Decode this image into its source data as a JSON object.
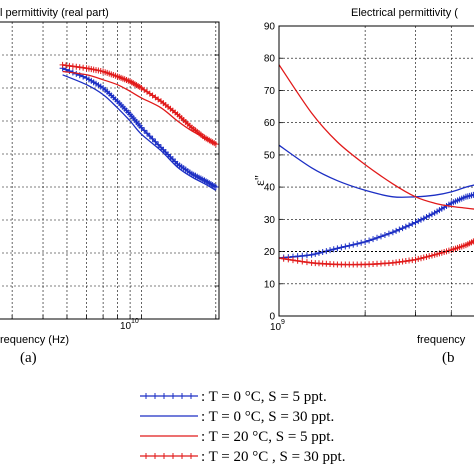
{
  "chart_data": [
    {
      "type": "line",
      "title": "l permittivity (real part)",
      "xlabel": "requency (Hz)",
      "ylabel": "",
      "x_scale": "log",
      "x_tick_labels": [
        {
          "base": "10",
          "exp": "10"
        }
      ],
      "y_tick_labels": [],
      "grid": true,
      "panel_label": "(a)",
      "series": [
        {
          "color": "#1c2fc4",
          "marker": "plus",
          "points": [
            [
              4800000000.0,
              76
            ],
            [
              6000000000.0,
              73
            ],
            [
              7000000000.0,
              70
            ],
            [
              8000000000.0,
              66
            ],
            [
              9000000000.0,
              62
            ],
            [
              10000000000.0,
              58
            ],
            [
              12000000000.0,
              52
            ],
            [
              14000000000.0,
              47
            ],
            [
              16000000000.0,
              44
            ],
            [
              18000000000.0,
              42
            ],
            [
              20000000000.0,
              40
            ]
          ]
        },
        {
          "color": "#1c2fc4",
          "marker": "none",
          "points": [
            [
              4800000000.0,
              74
            ],
            [
              6000000000.0,
              71
            ],
            [
              7000000000.0,
              68
            ],
            [
              8000000000.0,
              64
            ],
            [
              9000000000.0,
              60
            ],
            [
              10000000000.0,
              56
            ],
            [
              12000000000.0,
              51
            ],
            [
              14000000000.0,
              46
            ],
            [
              16000000000.0,
              43
            ],
            [
              18000000000.0,
              41
            ],
            [
              20000000000.0,
              39
            ]
          ]
        },
        {
          "color": "#e11a1a",
          "marker": "plus",
          "points": [
            [
              4800000000.0,
              77
            ],
            [
              6000000000.0,
              76
            ],
            [
              7000000000.0,
              75
            ],
            [
              8000000000.0,
              73.5
            ],
            [
              9000000000.0,
              72
            ],
            [
              10000000000.0,
              70
            ],
            [
              12000000000.0,
              66
            ],
            [
              14000000000.0,
              62
            ],
            [
              16000000000.0,
              58
            ],
            [
              18000000000.0,
              55
            ],
            [
              20000000000.0,
              53
            ]
          ]
        },
        {
          "color": "#e11a1a",
          "marker": "none",
          "points": [
            [
              4800000000.0,
              75
            ],
            [
              6000000000.0,
              74
            ],
            [
              7000000000.0,
              72.5
            ],
            [
              8000000000.0,
              71
            ],
            [
              9000000000.0,
              69
            ],
            [
              10000000000.0,
              67
            ],
            [
              12000000000.0,
              64
            ],
            [
              14000000000.0,
              60
            ],
            [
              16000000000.0,
              57
            ],
            [
              18000000000.0,
              55
            ],
            [
              20000000000.0,
              53
            ]
          ]
        }
      ]
    },
    {
      "type": "line",
      "title": "Electrical permittivity (",
      "xlabel": "frequency",
      "ylabel": "ε''",
      "x_scale": "log",
      "x_tick_labels": [
        {
          "base": "10",
          "exp": "9"
        }
      ],
      "y_tick_labels": [
        "0",
        "10",
        "20",
        "30",
        "40",
        "50",
        "60",
        "70",
        "80",
        "90"
      ],
      "ylim": [
        0,
        90
      ],
      "grid": true,
      "panel_label": "(b",
      "series": [
        {
          "color": "#1c2fc4",
          "marker": "plus",
          "points": [
            [
              1000000000.0,
              18
            ],
            [
              1300000000.0,
              19
            ],
            [
              1600000000.0,
              21
            ],
            [
              2000000000.0,
              23
            ],
            [
              2500000000.0,
              26
            ],
            [
              3000000000.0,
              29
            ],
            [
              3500000000.0,
              32
            ],
            [
              4000000000.0,
              35
            ],
            [
              4500000000.0,
              37
            ],
            [
              5000000000.0,
              38
            ]
          ]
        },
        {
          "color": "#1c2fc4",
          "marker": "none",
          "points": [
            [
              1000000000.0,
              53
            ],
            [
              1300000000.0,
              46
            ],
            [
              1600000000.0,
              42
            ],
            [
              2000000000.0,
              39
            ],
            [
              2500000000.0,
              37
            ],
            [
              3000000000.0,
              37
            ],
            [
              3500000000.0,
              37.5
            ],
            [
              4000000000.0,
              38.5
            ],
            [
              4500000000.0,
              40
            ],
            [
              5000000000.0,
              41
            ]
          ]
        },
        {
          "color": "#e11a1a",
          "marker": "plus",
          "points": [
            [
              1000000000.0,
              18
            ],
            [
              1300000000.0,
              16.5
            ],
            [
              1600000000.0,
              16
            ],
            [
              2000000000.0,
              16
            ],
            [
              2500000000.0,
              16.5
            ],
            [
              3000000000.0,
              17.5
            ],
            [
              3500000000.0,
              19
            ],
            [
              4000000000.0,
              20.5
            ],
            [
              4500000000.0,
              22
            ],
            [
              5000000000.0,
              24
            ]
          ]
        },
        {
          "color": "#e11a1a",
          "marker": "none",
          "points": [
            [
              1000000000.0,
              78
            ],
            [
              1300000000.0,
              63
            ],
            [
              1600000000.0,
              54
            ],
            [
              2000000000.0,
              47
            ],
            [
              2500000000.0,
              41
            ],
            [
              3000000000.0,
              37
            ],
            [
              3500000000.0,
              35
            ],
            [
              4000000000.0,
              34
            ],
            [
              4500000000.0,
              33.5
            ],
            [
              5000000000.0,
              33
            ]
          ]
        }
      ],
      "reference_line": {
        "y": 20,
        "style": "dashed",
        "color": "#000000"
      }
    }
  ],
  "legend": {
    "entries": [
      {
        "color": "#1c2fc4",
        "marker": "plus",
        "text": ": T = 0 °C, S = 5 ppt."
      },
      {
        "color": "#1c2fc4",
        "marker": "none",
        "text": ": T = 0 °C, S = 30 ppt."
      },
      {
        "color": "#e11a1a",
        "marker": "none",
        "text": ": T = 20 °C, S = 5 ppt."
      },
      {
        "color": "#e11a1a",
        "marker": "plus",
        "text": ": T = 20 °C , S = 30 ppt."
      }
    ]
  }
}
